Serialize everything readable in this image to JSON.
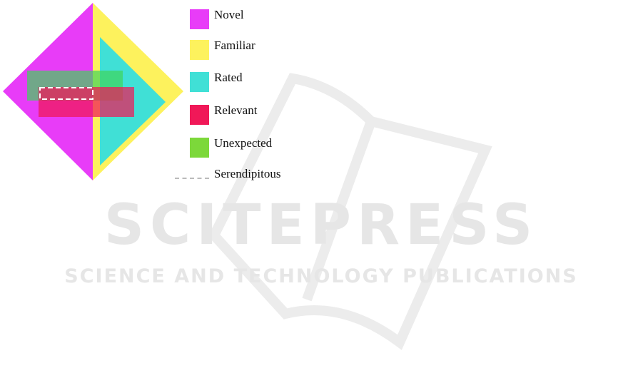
{
  "legend": [
    {
      "label": "Novel",
      "color": "#e83cf8"
    },
    {
      "label": "Familiar",
      "color": "#fdf25d"
    },
    {
      "label": "Rated",
      "color": "#40e0d6"
    },
    {
      "label": "Relevant",
      "color": "#f01858"
    },
    {
      "label": "Unexpected",
      "color": "#7cd83a"
    },
    {
      "label": "Serendipitous",
      "style": "dashed"
    }
  ],
  "watermark": {
    "title": "SCITEPRESS",
    "subtitle": "SCIENCE AND TECHNOLOGY PUBLICATIONS"
  }
}
